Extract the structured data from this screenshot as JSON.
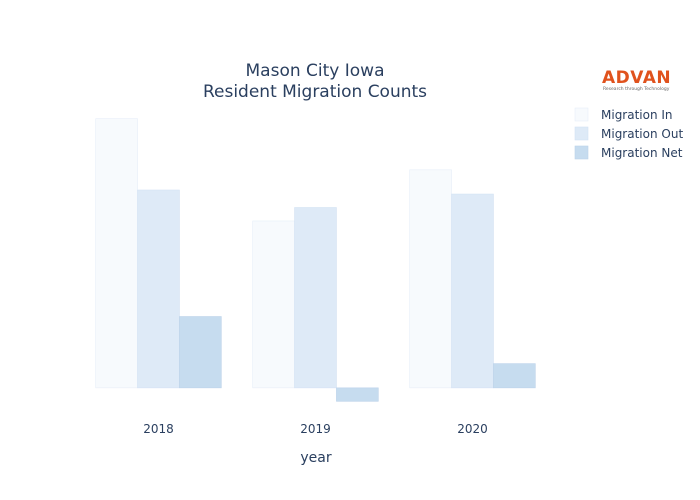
{
  "chart_data": {
    "type": "bar",
    "title": [
      "Mason City Iowa",
      "Resident Migration Counts"
    ],
    "xlabel": "year",
    "ylabel": "",
    "categories": [
      "2018",
      "2019",
      "2020"
    ],
    "series": [
      {
        "name": "Migration In",
        "values": [
          1000,
          620,
          810
        ],
        "color": "#f7fafd",
        "stroke": "#e6eef8"
      },
      {
        "name": "Migration Out",
        "values": [
          735,
          670,
          720
        ],
        "color": "#deeaf7",
        "stroke": "#d3e2f3"
      },
      {
        "name": "Migration Net",
        "values": [
          265,
          -50,
          90
        ],
        "color": "#c6dcef",
        "stroke": "#bcd3ea"
      }
    ],
    "ylim": [
      -60,
      1010
    ],
    "grid": false,
    "legend_position": "top-right"
  },
  "logo": {
    "name": "ADVAN",
    "tagline": "Research through Technology"
  }
}
